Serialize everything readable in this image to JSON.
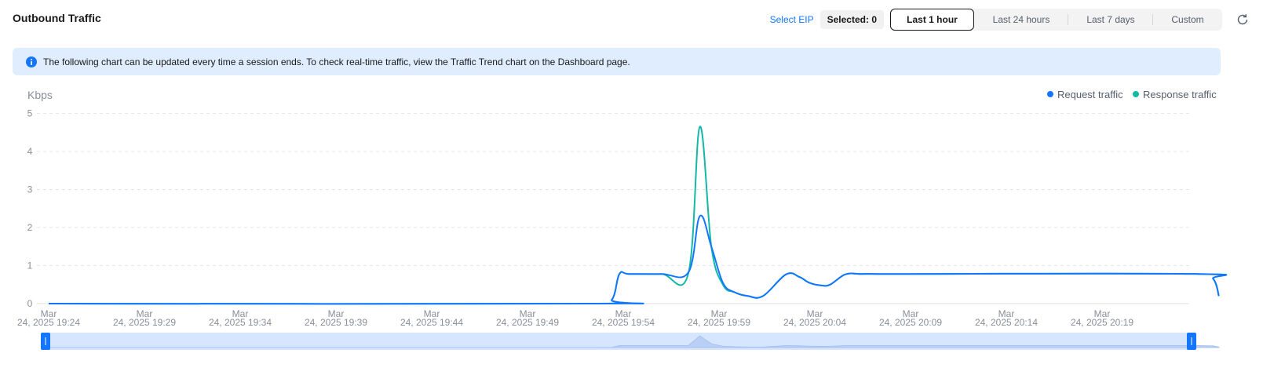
{
  "header": {
    "title": "Outbound Traffic",
    "select_eip": "Select EIP",
    "selected": "Selected: 0",
    "ranges": [
      "Last 1 hour",
      "Last 24 hours",
      "Last 7 days",
      "Custom"
    ],
    "active_range": "Last 1 hour",
    "refresh_icon": "refresh-icon"
  },
  "info": {
    "icon": "info-icon",
    "text": "The following chart can be updated every time a session ends. To check real-time traffic, view the Traffic Trend chart on the Dashboard page."
  },
  "colors": {
    "request": "#1476ff",
    "response": "#14b8a6",
    "accent": "#1476ff",
    "info_bg": "#dfedff"
  },
  "chart_data": {
    "type": "line",
    "title": "",
    "ylabel": "Kbps",
    "xlabel": "",
    "ylim": [
      0,
      5
    ],
    "yticks": [
      0,
      1,
      2,
      3,
      4,
      5
    ],
    "grid": true,
    "legend_position": "top-right",
    "x_minutes": [
      0,
      28.5,
      29.4,
      29.8,
      30.3,
      32,
      33.4,
      34.0,
      34.6,
      35.2,
      35.8,
      36.5,
      37.3,
      38.5,
      39.2,
      39.7,
      40.3,
      40.8,
      41.6,
      42.4,
      43.2,
      44.0,
      44.6,
      60.0,
      60.8,
      61.1
    ],
    "xticks": [
      {
        "minute": 0,
        "line1": "Mar",
        "line2": "24, 2025 19:24"
      },
      {
        "minute": 5,
        "line1": "Mar",
        "line2": "24, 2025 19:29"
      },
      {
        "minute": 10,
        "line1": "Mar",
        "line2": "24, 2025 19:34"
      },
      {
        "minute": 15,
        "line1": "Mar",
        "line2": "24, 2025 19:39"
      },
      {
        "minute": 20,
        "line1": "Mar",
        "line2": "24, 2025 19:44"
      },
      {
        "minute": 25,
        "line1": "Mar",
        "line2": "24, 2025 19:49"
      },
      {
        "minute": 30,
        "line1": "Mar",
        "line2": "24, 2025 19:54"
      },
      {
        "minute": 35,
        "line1": "Mar",
        "line2": "24, 2025 19:59"
      },
      {
        "minute": 40,
        "line1": "Mar",
        "line2": "24, 2025 20:04"
      },
      {
        "minute": 45,
        "line1": "Mar",
        "line2": "24, 2025 20:09"
      },
      {
        "minute": 50,
        "line1": "Mar",
        "line2": "24, 2025 20:14"
      },
      {
        "minute": 55,
        "line1": "Mar",
        "line2": "24, 2025 20:19"
      }
    ],
    "series": [
      {
        "name": "Request traffic",
        "values": [
          0,
          0,
          0.1,
          0.78,
          0.78,
          0.78,
          0.82,
          2.3,
          1.5,
          0.55,
          0.3,
          0.2,
          0.2,
          0.77,
          0.7,
          0.55,
          0.48,
          0.5,
          0.77,
          0.78,
          0.78,
          0.78,
          0.78,
          0.78,
          0.65,
          0.2
        ]
      },
      {
        "name": "Response traffic",
        "values": [
          0,
          0,
          0.1,
          0.78,
          0.78,
          0.78,
          0.8,
          4.65,
          1.5,
          0.5,
          0.3,
          0.2,
          0.2,
          0.77,
          0.7,
          0.55,
          0.48,
          0.5,
          0.77,
          0.78,
          0.78,
          0.78,
          0.78,
          0.78,
          0.65,
          0.2
        ]
      }
    ]
  }
}
